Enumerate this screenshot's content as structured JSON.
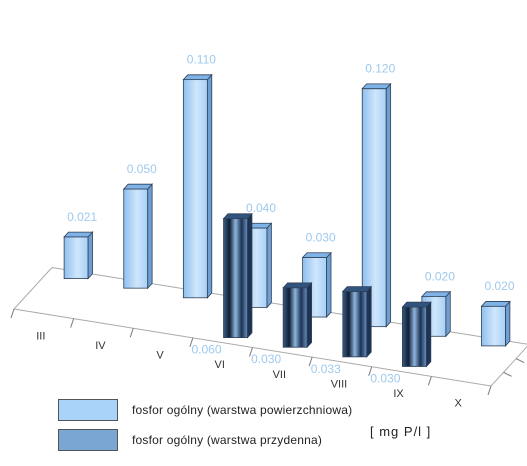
{
  "chart_data": {
    "type": "bar",
    "categories": [
      "III",
      "IV",
      "V",
      "VI",
      "VII",
      "VIII",
      "IX",
      "X"
    ],
    "series": [
      {
        "name": "fosfor ogólny (warstwa powierzchniowa)",
        "values": [
          0.021,
          0.05,
          0.11,
          0.04,
          0.03,
          0.12,
          0.02,
          0.02
        ],
        "labels": [
          "0.021",
          "0.050",
          "0.110",
          "0.040",
          "0.030",
          "0.120",
          "0.020",
          "0.020"
        ],
        "color": "#a9d3f8"
      },
      {
        "name": "fosfor ogólny (warstwa przydenna)",
        "values": [
          null,
          null,
          null,
          0.06,
          0.03,
          0.033,
          0.03,
          null
        ],
        "labels": [
          "",
          "",
          "",
          "0.060",
          "0.030",
          "0.033",
          "0.030",
          ""
        ],
        "color": "#7aa6d4"
      }
    ],
    "unit": "[ mg P/l ]",
    "ylim": [
      0,
      0.12
    ],
    "legend_position": "bottom",
    "grid": false,
    "label_color": "#9ec9ef"
  }
}
